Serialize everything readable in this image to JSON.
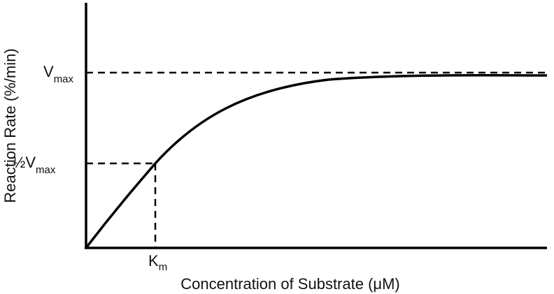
{
  "axes": {
    "y_label": "Reaction Rate (%/min)",
    "x_label": "Concentration of Substrate (μM)"
  },
  "markers": {
    "vmax": {
      "main": "V",
      "sub": "max"
    },
    "half_vmax": {
      "main": "½V",
      "sub": "max"
    },
    "km": {
      "main": "K",
      "sub": "m"
    }
  }
}
